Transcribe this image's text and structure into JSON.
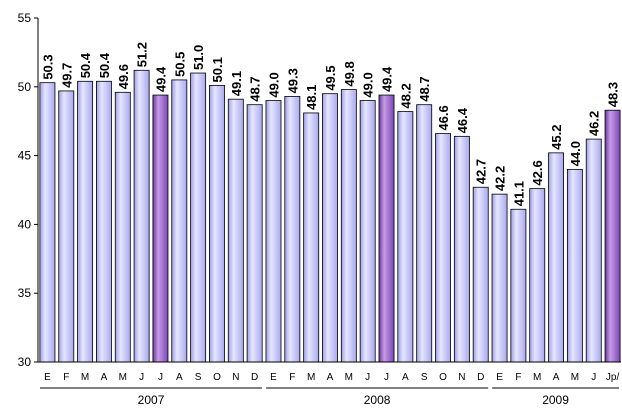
{
  "chart_data": {
    "type": "bar",
    "categories": [
      "E",
      "F",
      "M",
      "A",
      "M",
      "J",
      "J",
      "A",
      "S",
      "O",
      "N",
      "D",
      "E",
      "F",
      "M",
      "A",
      "M",
      "J",
      "J",
      "A",
      "S",
      "O",
      "N",
      "D",
      "E",
      "F",
      "M",
      "A",
      "M",
      "J",
      "Jp/"
    ],
    "values": [
      50.3,
      49.7,
      50.4,
      50.4,
      49.6,
      51.2,
      49.4,
      50.5,
      51.0,
      50.1,
      49.1,
      48.7,
      49.0,
      49.3,
      48.1,
      49.5,
      49.8,
      49.0,
      49.4,
      48.2,
      48.7,
      46.6,
      46.4,
      42.7,
      42.2,
      41.1,
      42.6,
      45.2,
      44.0,
      46.2,
      48.3
    ],
    "data_labels": [
      "50.3",
      "49.7",
      "50.4",
      "50.4",
      "49.6",
      "51.2",
      "49.4",
      "50.5",
      "51.0",
      "50.1",
      "49.1",
      "48.7",
      "49.0",
      "49.3",
      "48.1",
      "49.5",
      "49.8",
      "49.0",
      "49.4",
      "48.2",
      "48.7",
      "46.6",
      "46.4",
      "42.7",
      "42.2",
      "41.1",
      "42.6",
      "45.2",
      "44.0",
      "46.2",
      "48.3"
    ],
    "highlighted_indices": [
      6,
      18,
      30
    ],
    "groups": [
      {
        "label": "2007",
        "start": 0,
        "end": 11
      },
      {
        "label": "2008",
        "start": 12,
        "end": 23
      },
      {
        "label": "2009",
        "start": 24,
        "end": 30
      }
    ],
    "yticks": [
      "30",
      "35",
      "40",
      "45",
      "50",
      "55"
    ],
    "ylim": [
      30,
      55
    ],
    "grid": false,
    "colors": {
      "bar": "#ccccff",
      "bar_highlight": "#9966cc",
      "bar_stroke": "#000000",
      "axis": "#000000"
    }
  }
}
